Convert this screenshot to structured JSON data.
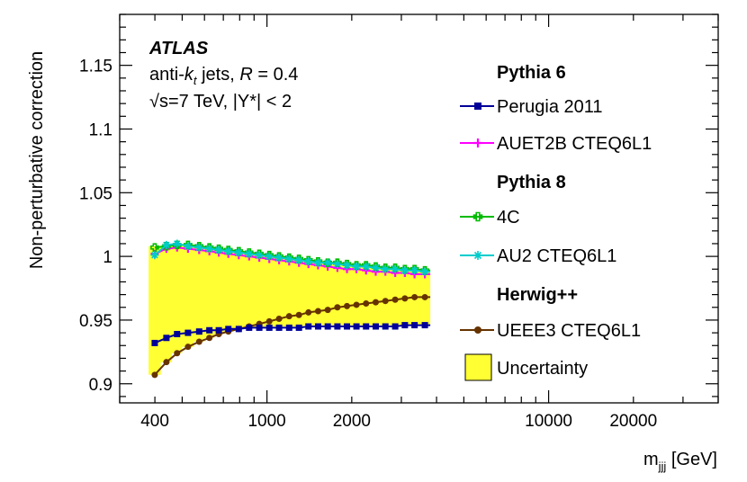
{
  "chart_data": {
    "type": "line",
    "xscale": "log",
    "xlim": [
      300,
      40000
    ],
    "ylim": [
      0.885,
      1.19
    ],
    "xlabel_main": "m",
    "xlabel_sub": "jjj",
    "xlabel_unit": " [GeV]",
    "ylabel": "Non-perturbative correction",
    "x_ticks": [
      {
        "value": 400,
        "label": "400"
      },
      {
        "value": 1000,
        "label": "1000"
      },
      {
        "value": 2000,
        "label": "2000"
      },
      {
        "value": 10000,
        "label": "10000"
      },
      {
        "value": 20000,
        "label": "20000"
      }
    ],
    "y_ticks": [
      {
        "value": 0.9,
        "label": "0.9"
      },
      {
        "value": 0.95,
        "label": "0.95"
      },
      {
        "value": 1.0,
        "label": "1"
      },
      {
        "value": 1.05,
        "label": "1.05"
      },
      {
        "value": 1.1,
        "label": "1.1"
      },
      {
        "value": 1.15,
        "label": "1.15"
      }
    ],
    "annotations": {
      "atlas": "ATLAS",
      "line2_prefix": "anti-",
      "line2_k": "k",
      "line2_t": "t",
      "line2_mid": " jets,  ",
      "line2_R": "R",
      "line2_suffix": " = 0.4",
      "line3": "√s=7 TeV,  |Y*| < 2"
    },
    "bin_edges": [
      380,
      420,
      460,
      500,
      550,
      600,
      650,
      700,
      760,
      830,
      900,
      980,
      1060,
      1150,
      1250,
      1350,
      1460,
      1580,
      1710,
      1850,
      2000,
      2160,
      2340,
      2530,
      2740,
      2970,
      3210,
      3480,
      3800
    ],
    "uncertainty": {
      "label": "Uncertainty",
      "color": "#ffff33",
      "lower": [
        0.907,
        0.917,
        0.924,
        0.929,
        0.933,
        0.936,
        0.939,
        0.941,
        0.943,
        0.944,
        0.944,
        0.945,
        0.945,
        0.945,
        0.945,
        0.946,
        0.946,
        0.946,
        0.946,
        0.946,
        0.946,
        0.946,
        0.946,
        0.946,
        0.946,
        0.946,
        0.946,
        0.946
      ],
      "upper": [
        1.008,
        1.009,
        1.01,
        1.009,
        1.008,
        1.007,
        1.006,
        1.005,
        1.004,
        1.003,
        1.002,
        1.001,
        1.0,
        0.999,
        0.998,
        0.997,
        0.996,
        0.995,
        0.995,
        0.994,
        0.993,
        0.993,
        0.992,
        0.991,
        0.991,
        0.99,
        0.99,
        0.989
      ]
    },
    "groups": [
      "Pythia 6",
      "Pythia 8",
      "Herwig++"
    ],
    "series": [
      {
        "name": "Perugia 2011",
        "group": "Pythia 6",
        "color": "#000099",
        "marker": "square",
        "values": [
          0.932,
          0.936,
          0.939,
          0.94,
          0.941,
          0.942,
          0.942,
          0.943,
          0.943,
          0.944,
          0.944,
          0.944,
          0.944,
          0.944,
          0.944,
          0.945,
          0.945,
          0.945,
          0.945,
          0.945,
          0.945,
          0.945,
          0.945,
          0.945,
          0.945,
          0.946,
          0.946,
          0.946
        ]
      },
      {
        "name": "AUET2B CTEQ6L1",
        "group": "Pythia 6",
        "color": "#ff00ff",
        "marker": "plus",
        "values": [
          1.002,
          1.006,
          1.007,
          1.006,
          1.005,
          1.004,
          1.003,
          1.002,
          1.001,
          1.0,
          0.999,
          0.998,
          0.997,
          0.996,
          0.995,
          0.994,
          0.993,
          0.992,
          0.991,
          0.99,
          0.99,
          0.989,
          0.988,
          0.988,
          0.987,
          0.987,
          0.986,
          0.986
        ]
      },
      {
        "name": "4C",
        "group": "Pythia 8",
        "color": "#00bb00",
        "marker": "cross-open",
        "values": [
          1.007,
          1.008,
          1.009,
          1.009,
          1.008,
          1.007,
          1.006,
          1.005,
          1.004,
          1.003,
          1.002,
          1.001,
          1.0,
          0.999,
          0.998,
          0.997,
          0.996,
          0.995,
          0.995,
          0.994,
          0.993,
          0.993,
          0.992,
          0.991,
          0.991,
          0.99,
          0.99,
          0.989
        ]
      },
      {
        "name": "AU2 CTEQ6L1",
        "group": "Pythia 8",
        "color": "#00cccc",
        "marker": "star",
        "values": [
          1.001,
          1.009,
          1.01,
          1.008,
          1.007,
          1.006,
          1.005,
          1.004,
          1.003,
          1.002,
          1.001,
          1.0,
          0.999,
          0.998,
          0.997,
          0.996,
          0.995,
          0.995,
          0.994,
          0.993,
          0.992,
          0.992,
          0.991,
          0.99,
          0.99,
          0.989,
          0.989,
          0.988
        ]
      },
      {
        "name": "UEEE3 CTEQ6L1",
        "group": "Herwig++",
        "color": "#663300",
        "marker": "circle",
        "values": [
          0.907,
          0.917,
          0.924,
          0.929,
          0.933,
          0.936,
          0.939,
          0.941,
          0.943,
          0.945,
          0.947,
          0.949,
          0.951,
          0.953,
          0.954,
          0.956,
          0.957,
          0.958,
          0.96,
          0.961,
          0.962,
          0.963,
          0.964,
          0.965,
          0.966,
          0.967,
          0.968,
          0.968
        ]
      }
    ]
  }
}
